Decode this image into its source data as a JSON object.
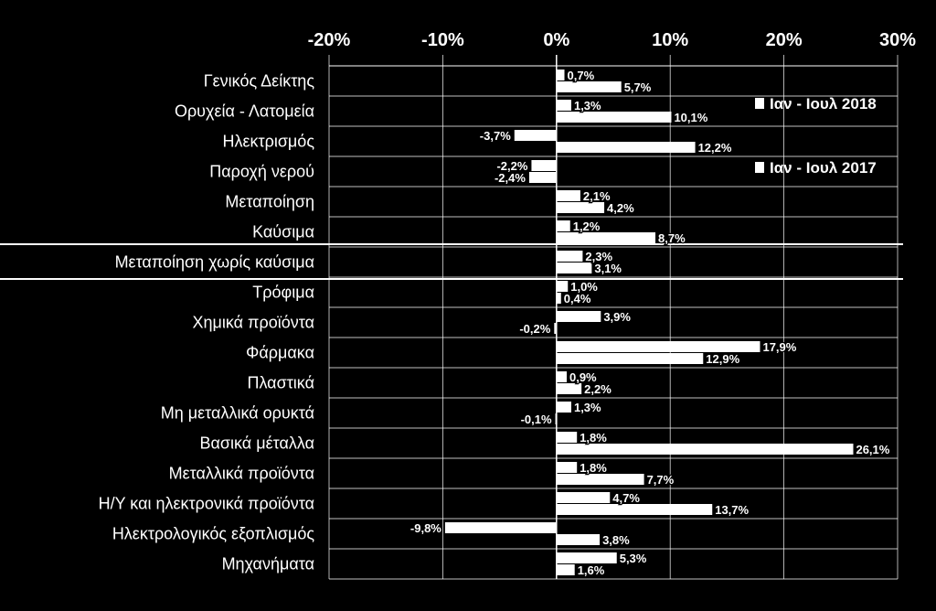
{
  "chart_data": {
    "type": "bar",
    "orientation": "horizontal",
    "xlim": [
      -20,
      30
    ],
    "xticks": [
      -20,
      -10,
      0,
      10,
      20,
      30
    ],
    "xtick_labels": [
      "-20%",
      "-10%",
      "0%",
      "10%",
      "20%",
      "30%"
    ],
    "legend_position": "right",
    "colors": {
      "background": "#000000",
      "bars": "#ffffff",
      "text": "#ffffff",
      "grid": "#ffffff"
    },
    "categories": [
      "Γενικός Δείκτης",
      "Ορυχεία - Λατομεία",
      "Ηλεκτρισμός",
      "Παροχή νερού",
      "Μεταποίηση",
      "Καύσιμα",
      "Μεταποίηση χωρίς καύσιμα",
      "Τρόφιμα",
      "Χημικά προϊόντα",
      "Φάρμακα",
      "Πλαστικά",
      "Μη  μεταλλικά ορυκτά",
      "Βασικά μέταλλα",
      "Μεταλλικά προϊόντα",
      "Η/Υ και ηλεκτρονικά προϊόντα",
      "Ηλεκτρολογικός εξοπλισμός",
      "Μηχανήματα"
    ],
    "highlighted_category": "Μεταποίηση χωρίς καύσιμα",
    "series": [
      {
        "name": "Ιαν - Ιουλ 2018",
        "values": [
          0.7,
          1.3,
          -3.7,
          -2.2,
          2.1,
          1.2,
          2.3,
          1.0,
          3.9,
          17.9,
          0.9,
          1.3,
          1.8,
          1.8,
          4.7,
          -9.8,
          5.3
        ],
        "labels": [
          "0,7%",
          "1,3%",
          "-3,7%",
          "-2,2%",
          "2,1%",
          "1,2%",
          "2,3%",
          "1,0%",
          "3,9%",
          "17,9%",
          "0,9%",
          "1,3%",
          "1,8%",
          "1,8%",
          "4,7%",
          "-9,8%",
          "5,3%"
        ]
      },
      {
        "name": "Ιαν - Ιουλ 2017",
        "values": [
          5.7,
          10.1,
          12.2,
          -2.4,
          4.2,
          8.7,
          3.1,
          0.4,
          -0.2,
          12.9,
          2.2,
          -0.1,
          26.1,
          7.7,
          13.7,
          3.8,
          1.6
        ],
        "labels": [
          "5,7%",
          "10,1%",
          "12,2%",
          "-2,4%",
          "4,2%",
          "8,7%",
          "3,1%",
          "0,4%",
          "-0,2%",
          "12,9%",
          "2,2%",
          "-0,1%",
          "26,1%",
          "7,7%",
          "13,7%",
          "3,8%",
          "1,6%"
        ]
      }
    ]
  }
}
